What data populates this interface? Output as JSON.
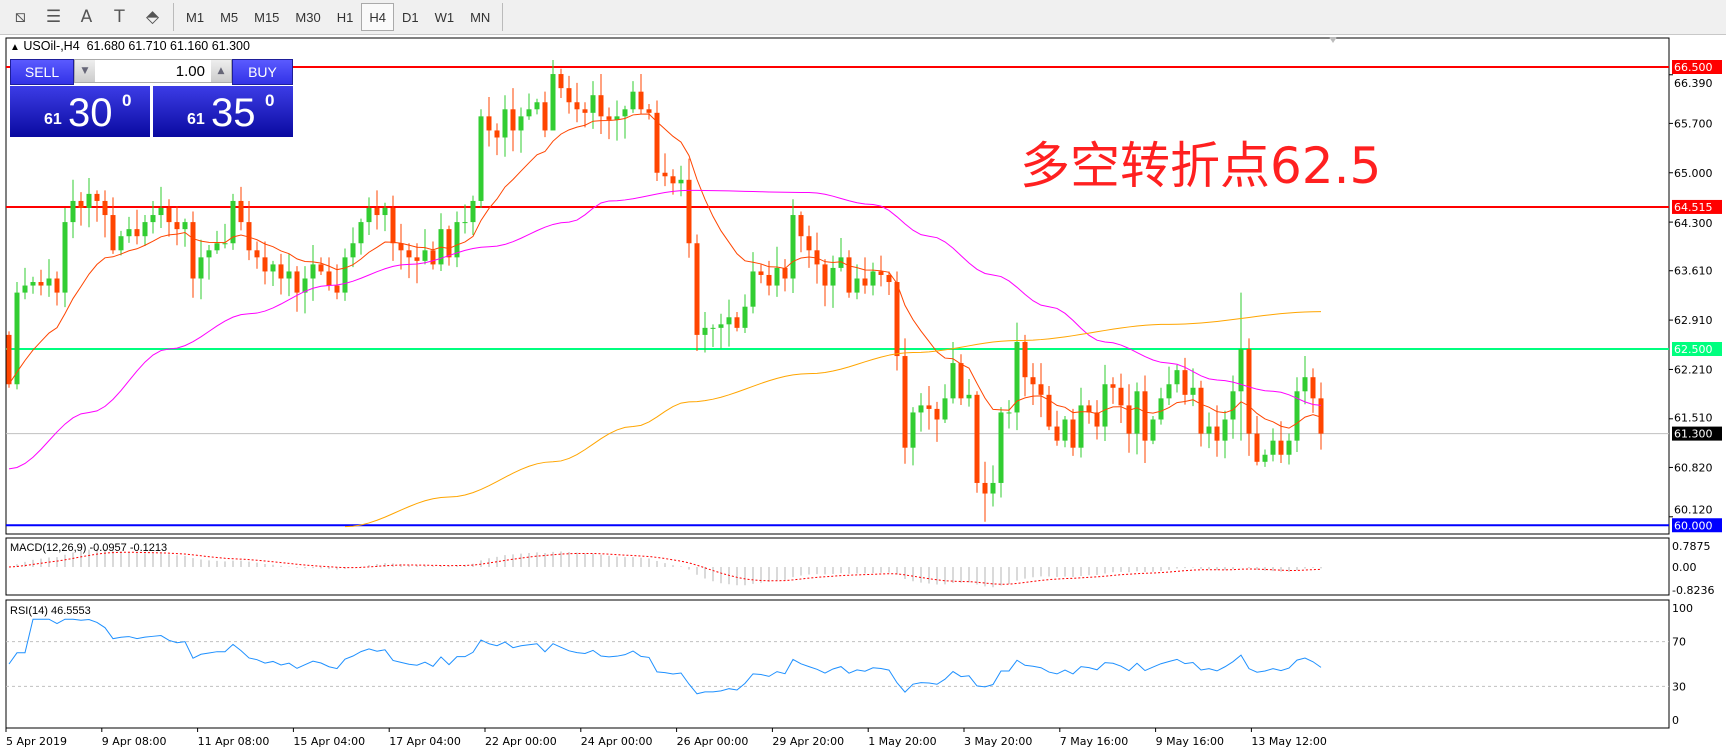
{
  "toolbar": {
    "icons": [
      "chart-lines-icon",
      "fibonacci-icon",
      "text-icon",
      "text-label-icon",
      "arrows-icon"
    ],
    "icon_glyphs": [
      "⧅",
      "☰",
      "A",
      "T",
      "⬘"
    ],
    "timeframes": [
      "M1",
      "M5",
      "M15",
      "M30",
      "H1",
      "H4",
      "D1",
      "W1",
      "MN"
    ],
    "active_timeframe": "H4"
  },
  "header": {
    "symbol": "USOil-,H4",
    "ohlc": "61.680 61.710 61.160 61.300"
  },
  "trade_panel": {
    "sell_label": "SELL",
    "buy_label": "BUY",
    "quantity": "1.00",
    "sell_prefix": "61",
    "sell_big": "30",
    "sell_sup": "0",
    "buy_prefix": "61",
    "buy_big": "35",
    "buy_sup": "0"
  },
  "annotation": "多空转折点62.5",
  "colors": {
    "bull": "#32cd32",
    "bear": "#ff4500",
    "ma_fast": "#ff4500",
    "ma_mid": "#ff00ff",
    "ma_slow": "#ffa500",
    "rsi": "#1e90ff",
    "macd_signal": "#ff0000",
    "macd_hist": "#b4b4b4"
  },
  "chart_data": {
    "type": "candlestick",
    "symbol": "USOil-",
    "timeframe": "H4",
    "ylim": [
      59.9,
      66.7
    ],
    "price_ticks": [
      "66.390",
      "65.700",
      "65.000",
      "64.300",
      "63.610",
      "62.910",
      "62.210",
      "61.510",
      "60.820",
      "60.120"
    ],
    "levels": [
      {
        "price": 66.5,
        "label": "66.500",
        "color": "#ff0000"
      },
      {
        "price": 64.515,
        "label": "64.515",
        "color": "#ff0000"
      },
      {
        "price": 62.5,
        "label": "62.500",
        "color": "#00ff7f"
      },
      {
        "price": 61.3,
        "label": "61.300",
        "color": "#000000",
        "line": "#c0c0c0"
      },
      {
        "price": 60.0,
        "label": "60.000",
        "color": "#0000ff"
      }
    ],
    "first_open": 62.7,
    "closes": [
      62.0,
      63.3,
      63.4,
      63.45,
      63.4,
      63.5,
      63.3,
      64.3,
      64.6,
      64.5,
      64.7,
      64.6,
      64.4,
      63.9,
      64.1,
      64.2,
      64.1,
      64.3,
      64.4,
      64.5,
      64.3,
      64.2,
      64.3,
      63.5,
      63.8,
      63.9,
      64.0,
      64.0,
      64.6,
      64.3,
      63.9,
      63.8,
      63.6,
      63.7,
      63.5,
      63.6,
      63.3,
      63.5,
      63.7,
      63.6,
      63.4,
      63.3,
      63.8,
      64.0,
      64.3,
      64.5,
      64.4,
      64.5,
      64.0,
      63.9,
      63.8,
      63.75,
      63.9,
      63.7,
      64.2,
      63.8,
      64.3,
      64.3,
      64.6,
      65.8,
      65.6,
      65.5,
      65.9,
      65.6,
      65.8,
      65.9,
      66.0,
      65.6,
      66.4,
      66.2,
      66.0,
      65.9,
      65.85,
      66.1,
      65.8,
      65.75,
      65.8,
      65.9,
      66.15,
      65.9,
      65.85,
      65.0,
      64.95,
      64.85,
      64.9,
      64.0,
      62.7,
      62.8,
      62.8,
      62.85,
      62.95,
      62.8,
      63.1,
      63.6,
      63.55,
      63.4,
      63.65,
      63.5,
      64.4,
      64.1,
      63.9,
      63.7,
      63.4,
      63.65,
      63.8,
      63.3,
      63.5,
      63.4,
      63.6,
      63.55,
      63.45,
      62.4,
      61.1,
      61.6,
      61.7,
      61.65,
      61.5,
      61.8,
      62.3,
      61.8,
      61.85,
      60.6,
      60.45,
      60.6,
      61.6,
      61.6,
      62.6,
      62.1,
      62.0,
      61.85,
      61.4,
      61.2,
      61.5,
      61.1,
      61.7,
      61.6,
      61.4,
      62.0,
      61.95,
      61.7,
      61.3,
      61.9,
      61.2,
      61.5,
      61.8,
      62.0,
      62.2,
      61.85,
      61.95,
      61.3,
      61.4,
      61.2,
      61.5,
      61.9,
      62.5,
      61.3,
      60.9,
      61.0,
      61.2,
      61.0,
      61.2,
      61.9,
      62.1,
      61.8,
      61.3
    ],
    "extremes": [
      [
        68,
        66.6,
        65.9
      ],
      [
        122,
        60.9,
        60.05
      ],
      [
        154,
        63.3,
        61.2
      ],
      [
        59,
        65.9,
        64.5
      ]
    ],
    "ma_mid": [
      [
        0,
        60.8
      ],
      [
        10,
        61.6
      ],
      [
        20,
        62.5
      ],
      [
        30,
        63.0
      ],
      [
        40,
        63.4
      ],
      [
        50,
        63.7
      ],
      [
        60,
        63.95
      ],
      [
        70,
        64.3
      ],
      [
        75,
        64.6
      ],
      [
        85,
        64.75
      ],
      [
        100,
        64.72
      ],
      [
        108,
        64.55
      ],
      [
        115,
        64.1
      ],
      [
        123,
        63.55
      ],
      [
        130,
        63.1
      ],
      [
        137,
        62.6
      ],
      [
        145,
        62.3
      ],
      [
        151,
        62.06
      ],
      [
        158,
        61.9
      ],
      [
        164,
        61.7
      ]
    ],
    "ma_slow": [
      [
        42,
        59.98
      ],
      [
        55,
        60.4
      ],
      [
        68,
        60.9
      ],
      [
        78,
        61.4
      ],
      [
        85,
        61.75
      ],
      [
        100,
        62.15
      ],
      [
        113,
        62.45
      ],
      [
        126,
        62.62
      ],
      [
        145,
        62.85
      ],
      [
        164,
        63.03
      ]
    ],
    "x_labels": [
      "5 Apr 2019",
      "9 Apr 08:00",
      "11 Apr 08:00",
      "15 Apr 04:00",
      "17 Apr 04:00",
      "22 Apr 00:00",
      "24 Apr 00:00",
      "26 Apr 00:00",
      "29 Apr 20:00",
      "1 May 20:00",
      "3 May 20:00",
      "7 May 16:00",
      "9 May 16:00",
      "13 May 12:00"
    ],
    "macd": {
      "label": "MACD(12,26,9) -0.0957 -0.1213",
      "ticks": [
        "0.7875",
        "0.00",
        "-0.8236"
      ],
      "ylim": [
        -0.8236,
        0.7875
      ]
    },
    "rsi": {
      "label": "RSI(14) 46.5553",
      "ticks": [
        "100",
        "70",
        "30",
        "0"
      ],
      "levels": [
        70,
        30
      ]
    }
  }
}
